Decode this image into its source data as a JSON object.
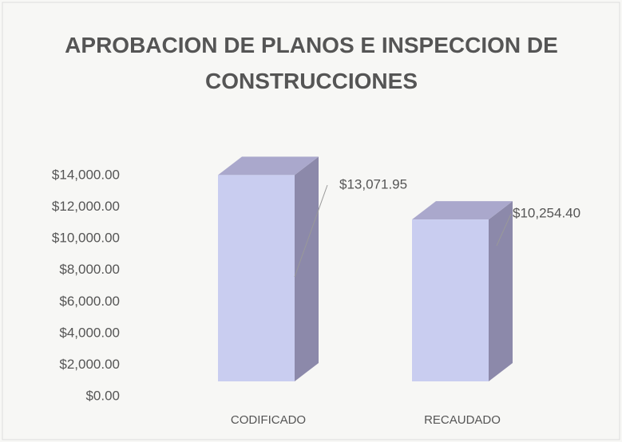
{
  "chart_data": {
    "type": "bar3d",
    "title": "APROBACION DE PLANOS E INSPECCION DE CONSTRUCCIONES",
    "categories": [
      "CODIFICADO",
      "RECAUDADO"
    ],
    "values": [
      13071.95,
      10254.4
    ],
    "value_labels": [
      "$13,071.95",
      "$10,254.40"
    ],
    "color": "#c9cdf0",
    "ylim": [
      0,
      14000
    ],
    "yticks": [
      {
        "value": 0,
        "label": "$0.00"
      },
      {
        "value": 2000,
        "label": "$2,000.00"
      },
      {
        "value": 4000,
        "label": "$4,000.00"
      },
      {
        "value": 6000,
        "label": "$6,000.00"
      },
      {
        "value": 8000,
        "label": "$8,000.00"
      },
      {
        "value": 10000,
        "label": "$10,000.00"
      },
      {
        "value": 12000,
        "label": "$12,000.00"
      },
      {
        "value": 14000,
        "label": "$14,000.00"
      }
    ]
  }
}
